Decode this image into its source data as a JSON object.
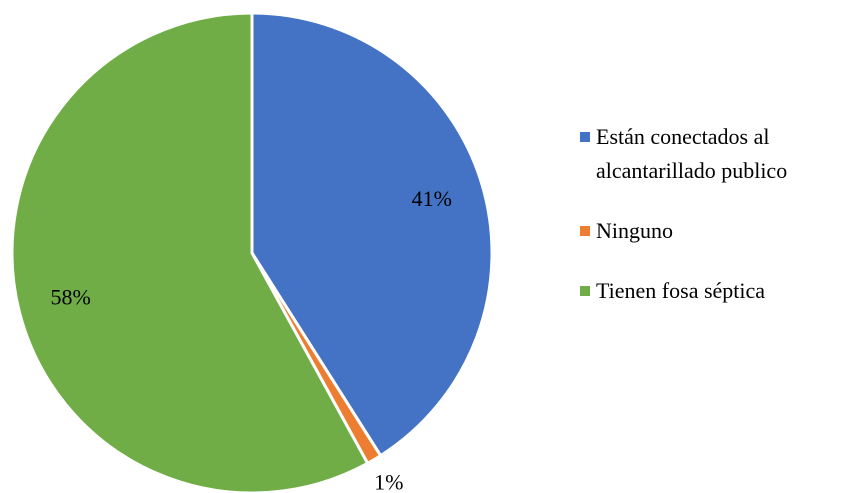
{
  "chart_data": {
    "type": "pie",
    "categories": [
      "Están conectados al alcantarillado publico",
      "Ninguno",
      "Tienen fosa séptica"
    ],
    "values": [
      41,
      1,
      58
    ],
    "value_labels": [
      "41%",
      "1%",
      "58%"
    ],
    "colors": [
      "#4472c4",
      "#ed7d31",
      "#70ad47"
    ],
    "legend": "right"
  }
}
